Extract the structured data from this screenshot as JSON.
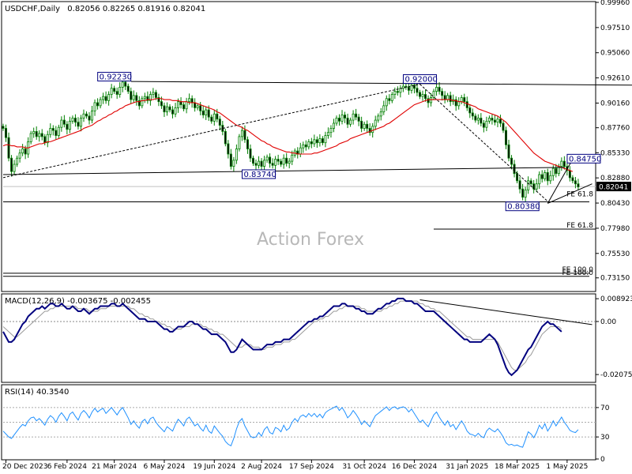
{
  "chart_data": [
    {
      "type": "candlestick",
      "panel": "price",
      "symbol_header": "USDCHF,Daily",
      "ohlc_header": "0.82056 0.82265 0.81916 0.82041",
      "watermark": "Action Forex",
      "ylim": [
        0.719,
        0.9996
      ],
      "y_tick_labels": [
        "0.99960",
        "0.97510",
        "0.95060",
        "0.92610",
        "0.90160",
        "0.87760",
        "0.85330",
        "0.82880",
        "0.80430",
        "0.77980",
        "0.75530",
        "0.73150"
      ],
      "y_tick_values": [
        0.9996,
        0.9751,
        0.9506,
        0.9261,
        0.9016,
        0.8776,
        0.8533,
        0.8288,
        0.8043,
        0.7798,
        0.7553,
        0.7315
      ],
      "current_price": {
        "label": "0.82041",
        "value": 0.82041
      },
      "price_labels": [
        {
          "text": "0.92230",
          "t": 40,
          "value": 0.9223
        },
        {
          "text": "0.92000",
          "t": 150,
          "value": 0.92
        },
        {
          "text": "0.83740",
          "t": 92,
          "value": 0.8374
        },
        {
          "text": "0.84750",
          "t": 209,
          "value": 0.8475
        },
        {
          "text": "0.80380",
          "t": 194,
          "value": 0.8038
        }
      ],
      "fib_labels": [
        {
          "text": "FE 61.8",
          "value": 0.8095
        },
        {
          "text": "FE 61.8",
          "value": 0.779
        },
        {
          "text": "FE 100.0",
          "value": 0.736
        },
        {
          "text": "FE 100.0",
          "value": 0.733
        }
      ],
      "close_series": [
        0.877,
        0.868,
        0.848,
        0.835,
        0.842,
        0.848,
        0.853,
        0.857,
        0.852,
        0.864,
        0.872,
        0.874,
        0.869,
        0.872,
        0.869,
        0.863,
        0.871,
        0.877,
        0.875,
        0.87,
        0.878,
        0.885,
        0.881,
        0.876,
        0.884,
        0.887,
        0.883,
        0.879,
        0.887,
        0.891,
        0.889,
        0.885,
        0.894,
        0.902,
        0.899,
        0.905,
        0.908,
        0.904,
        0.91,
        0.916,
        0.913,
        0.91,
        0.917,
        0.922,
        0.918,
        0.913,
        0.905,
        0.909,
        0.904,
        0.899,
        0.906,
        0.908,
        0.904,
        0.91,
        0.912,
        0.907,
        0.903,
        0.899,
        0.893,
        0.898,
        0.895,
        0.891,
        0.897,
        0.903,
        0.9,
        0.896,
        0.903,
        0.906,
        0.902,
        0.897,
        0.899,
        0.894,
        0.89,
        0.895,
        0.888,
        0.884,
        0.891,
        0.886,
        0.88,
        0.874,
        0.862,
        0.852,
        0.84,
        0.846,
        0.857,
        0.869,
        0.875,
        0.866,
        0.857,
        0.848,
        0.843,
        0.841,
        0.845,
        0.84,
        0.846,
        0.849,
        0.843,
        0.841,
        0.847,
        0.845,
        0.842,
        0.848,
        0.843,
        0.845,
        0.851,
        0.855,
        0.852,
        0.858,
        0.861,
        0.859,
        0.864,
        0.862,
        0.866,
        0.863,
        0.867,
        0.863,
        0.87,
        0.873,
        0.877,
        0.882,
        0.887,
        0.884,
        0.89,
        0.887,
        0.881,
        0.885,
        0.891,
        0.888,
        0.884,
        0.877,
        0.881,
        0.877,
        0.873,
        0.879,
        0.885,
        0.889,
        0.893,
        0.899,
        0.906,
        0.904,
        0.91,
        0.913,
        0.912,
        0.916,
        0.918,
        0.917,
        0.914,
        0.919,
        0.916,
        0.912,
        0.908,
        0.91,
        0.906,
        0.902,
        0.907,
        0.913,
        0.917,
        0.913,
        0.909,
        0.905,
        0.909,
        0.903,
        0.905,
        0.899,
        0.903,
        0.907,
        0.903,
        0.897,
        0.892,
        0.889,
        0.885,
        0.887,
        0.882,
        0.878,
        0.884,
        0.887,
        0.885,
        0.883,
        0.886,
        0.882,
        0.875,
        0.861,
        0.848,
        0.842,
        0.833,
        0.826,
        0.818,
        0.81,
        0.817,
        0.826,
        0.823,
        0.818,
        0.823,
        0.832,
        0.828,
        0.834,
        0.826,
        0.831,
        0.838,
        0.833,
        0.84,
        0.845,
        0.84,
        0.836,
        0.829,
        0.826,
        0.823,
        0.82
      ],
      "ma_series": [
        0.86,
        0.861,
        0.861,
        0.86,
        0.86,
        0.859,
        0.859,
        0.859,
        0.858,
        0.858,
        0.859,
        0.86,
        0.861,
        0.862,
        0.862,
        0.863,
        0.864,
        0.864,
        0.865,
        0.866,
        0.867,
        0.868,
        0.869,
        0.87,
        0.871,
        0.872,
        0.873,
        0.874,
        0.875,
        0.877,
        0.878,
        0.879,
        0.88,
        0.882,
        0.884,
        0.885,
        0.887,
        0.888,
        0.89,
        0.891,
        0.893,
        0.894,
        0.896,
        0.897,
        0.899,
        0.9,
        0.901,
        0.902,
        0.903,
        0.903,
        0.904,
        0.904,
        0.905,
        0.905,
        0.905,
        0.906,
        0.906,
        0.906,
        0.905,
        0.905,
        0.905,
        0.904,
        0.904,
        0.904,
        0.903,
        0.903,
        0.903,
        0.902,
        0.902,
        0.902,
        0.901,
        0.9,
        0.899,
        0.898,
        0.897,
        0.896,
        0.895,
        0.893,
        0.892,
        0.89,
        0.888,
        0.886,
        0.884,
        0.882,
        0.88,
        0.879,
        0.878,
        0.876,
        0.875,
        0.873,
        0.871,
        0.869,
        0.867,
        0.865,
        0.864,
        0.862,
        0.861,
        0.859,
        0.858,
        0.857,
        0.856,
        0.855,
        0.854,
        0.854,
        0.853,
        0.853,
        0.852,
        0.852,
        0.852,
        0.852,
        0.852,
        0.852,
        0.853,
        0.853,
        0.854,
        0.855,
        0.856,
        0.857,
        0.858,
        0.859,
        0.86,
        0.862,
        0.863,
        0.864,
        0.865,
        0.867,
        0.868,
        0.869,
        0.87,
        0.871,
        0.872,
        0.873,
        0.874,
        0.875,
        0.876,
        0.877,
        0.878,
        0.879,
        0.881,
        0.882,
        0.884,
        0.886,
        0.888,
        0.89,
        0.892,
        0.894,
        0.896,
        0.898,
        0.9,
        0.901,
        0.902,
        0.903,
        0.904,
        0.905,
        0.905,
        0.905,
        0.905,
        0.905,
        0.905,
        0.905,
        0.905,
        0.905,
        0.904,
        0.904,
        0.903,
        0.903,
        0.902,
        0.901,
        0.9,
        0.899,
        0.898,
        0.896,
        0.895,
        0.894,
        0.893,
        0.892,
        0.891,
        0.89,
        0.889,
        0.887,
        0.885,
        0.883,
        0.88,
        0.877,
        0.874,
        0.871,
        0.868,
        0.865,
        0.862,
        0.859,
        0.856,
        0.853,
        0.851,
        0.849,
        0.847,
        0.845,
        0.844,
        0.843,
        0.842,
        0.841,
        0.84,
        0.839,
        0.838,
        0.837,
        0.836,
        0.835
      ]
    },
    {
      "type": "line",
      "panel": "macd",
      "header": "MACD(12,26,9) -0.003675 -0.002455",
      "ylim": [
        -0.0235,
        0.0105
      ],
      "y_tick_labels": [
        "0.008923",
        "0.00",
        "-0.020750"
      ],
      "y_tick_values": [
        0.008923,
        0.0,
        -0.02075
      ],
      "current_value": {
        "label": "0.00",
        "value": 0.0
      },
      "macd_series": [
        -0.004,
        -0.006,
        -0.008,
        -0.008,
        -0.007,
        -0.005,
        -0.003,
        -0.001,
        0.0,
        0.002,
        0.003,
        0.004,
        0.005,
        0.005,
        0.006,
        0.005,
        0.006,
        0.007,
        0.007,
        0.006,
        0.006,
        0.007,
        0.006,
        0.005,
        0.005,
        0.006,
        0.005,
        0.004,
        0.004,
        0.005,
        0.004,
        0.003,
        0.004,
        0.005,
        0.005,
        0.006,
        0.006,
        0.006,
        0.006,
        0.007,
        0.007,
        0.006,
        0.006,
        0.007,
        0.006,
        0.005,
        0.004,
        0.003,
        0.002,
        0.001,
        0.001,
        0.001,
        0.0,
        0.0,
        0.0,
        0.0,
        -0.001,
        -0.002,
        -0.003,
        -0.003,
        -0.004,
        -0.004,
        -0.003,
        -0.002,
        -0.002,
        -0.002,
        -0.001,
        0.0,
        0.0,
        -0.001,
        -0.001,
        -0.002,
        -0.003,
        -0.003,
        -0.004,
        -0.005,
        -0.005,
        -0.005,
        -0.006,
        -0.007,
        -0.008,
        -0.01,
        -0.012,
        -0.012,
        -0.011,
        -0.009,
        -0.007,
        -0.008,
        -0.009,
        -0.01,
        -0.011,
        -0.011,
        -0.011,
        -0.011,
        -0.01,
        -0.009,
        -0.009,
        -0.009,
        -0.008,
        -0.008,
        -0.008,
        -0.007,
        -0.007,
        -0.007,
        -0.006,
        -0.005,
        -0.004,
        -0.003,
        -0.002,
        -0.001,
        0.0,
        0.0,
        0.001,
        0.001,
        0.002,
        0.002,
        0.003,
        0.004,
        0.005,
        0.006,
        0.006,
        0.006,
        0.007,
        0.007,
        0.006,
        0.006,
        0.006,
        0.005,
        0.005,
        0.004,
        0.004,
        0.003,
        0.003,
        0.003,
        0.004,
        0.005,
        0.005,
        0.006,
        0.007,
        0.007,
        0.008,
        0.008,
        0.009,
        0.009,
        0.009,
        0.008,
        0.008,
        0.008,
        0.007,
        0.007,
        0.006,
        0.005,
        0.004,
        0.004,
        0.004,
        0.004,
        0.003,
        0.002,
        0.001,
        0.0,
        -0.001,
        -0.002,
        -0.003,
        -0.004,
        -0.005,
        -0.006,
        -0.007,
        -0.007,
        -0.008,
        -0.008,
        -0.008,
        -0.008,
        -0.008,
        -0.007,
        -0.006,
        -0.005,
        -0.006,
        -0.007,
        -0.009,
        -0.012,
        -0.015,
        -0.018,
        -0.02,
        -0.021,
        -0.02,
        -0.019,
        -0.017,
        -0.015,
        -0.013,
        -0.011,
        -0.01,
        -0.008,
        -0.006,
        -0.004,
        -0.002,
        -0.001,
        0.0,
        -0.001,
        -0.001,
        -0.002,
        -0.003,
        -0.004
      ],
      "signal_series": [
        -0.002,
        -0.003,
        -0.004,
        -0.005,
        -0.006,
        -0.006,
        -0.005,
        -0.004,
        -0.003,
        -0.002,
        -0.001,
        0.0,
        0.001,
        0.002,
        0.003,
        0.004,
        0.004,
        0.005,
        0.005,
        0.006,
        0.006,
        0.006,
        0.006,
        0.006,
        0.006,
        0.006,
        0.006,
        0.005,
        0.005,
        0.005,
        0.005,
        0.004,
        0.004,
        0.004,
        0.004,
        0.005,
        0.005,
        0.005,
        0.006,
        0.006,
        0.006,
        0.006,
        0.006,
        0.006,
        0.006,
        0.006,
        0.005,
        0.005,
        0.004,
        0.003,
        0.003,
        0.002,
        0.002,
        0.001,
        0.001,
        0.0,
        0.0,
        -0.001,
        -0.001,
        -0.002,
        -0.002,
        -0.003,
        -0.003,
        -0.003,
        -0.003,
        -0.002,
        -0.002,
        -0.002,
        -0.001,
        -0.001,
        -0.001,
        -0.001,
        -0.002,
        -0.002,
        -0.003,
        -0.003,
        -0.004,
        -0.004,
        -0.005,
        -0.005,
        -0.006,
        -0.007,
        -0.008,
        -0.009,
        -0.01,
        -0.01,
        -0.01,
        -0.009,
        -0.009,
        -0.009,
        -0.01,
        -0.01,
        -0.01,
        -0.011,
        -0.011,
        -0.01,
        -0.01,
        -0.01,
        -0.009,
        -0.009,
        -0.009,
        -0.008,
        -0.008,
        -0.008,
        -0.007,
        -0.007,
        -0.006,
        -0.005,
        -0.004,
        -0.003,
        -0.002,
        -0.001,
        0.0,
        0.0,
        0.001,
        0.001,
        0.002,
        0.002,
        0.003,
        0.004,
        0.004,
        0.005,
        0.005,
        0.006,
        0.006,
        0.006,
        0.006,
        0.006,
        0.006,
        0.005,
        0.005,
        0.004,
        0.004,
        0.004,
        0.004,
        0.004,
        0.004,
        0.005,
        0.005,
        0.006,
        0.006,
        0.007,
        0.007,
        0.008,
        0.008,
        0.008,
        0.008,
        0.008,
        0.008,
        0.008,
        0.007,
        0.007,
        0.006,
        0.006,
        0.005,
        0.005,
        0.004,
        0.004,
        0.003,
        0.002,
        0.001,
        0.0,
        -0.001,
        -0.002,
        -0.003,
        -0.004,
        -0.005,
        -0.006,
        -0.006,
        -0.007,
        -0.007,
        -0.007,
        -0.007,
        -0.007,
        -0.007,
        -0.007,
        -0.007,
        -0.007,
        -0.008,
        -0.01,
        -0.012,
        -0.014,
        -0.016,
        -0.018,
        -0.019,
        -0.019,
        -0.018,
        -0.017,
        -0.016,
        -0.014,
        -0.013,
        -0.011,
        -0.009,
        -0.007,
        -0.005,
        -0.004,
        -0.003,
        -0.002,
        -0.002,
        -0.002,
        -0.002,
        -0.003
      ]
    },
    {
      "type": "line",
      "panel": "rsi",
      "header": "RSI(14) 40.3540",
      "ylim": [
        0,
        100
      ],
      "y_tick_labels": [
        "70",
        "30",
        "0"
      ],
      "y_tick_values": [
        70,
        30,
        0
      ],
      "levels": [
        70,
        50,
        30
      ],
      "rsi_series": [
        38,
        34,
        30,
        28,
        33,
        38,
        43,
        47,
        45,
        52,
        56,
        57,
        52,
        55,
        51,
        46,
        54,
        59,
        56,
        50,
        58,
        63,
        58,
        52,
        61,
        64,
        58,
        53,
        62,
        66,
        62,
        56,
        64,
        69,
        64,
        67,
        69,
        62,
        66,
        70,
        65,
        60,
        66,
        70,
        63,
        56,
        47,
        52,
        46,
        42,
        51,
        54,
        48,
        55,
        57,
        50,
        45,
        41,
        37,
        44,
        41,
        38,
        47,
        54,
        50,
        45,
        54,
        57,
        51,
        45,
        48,
        42,
        38,
        46,
        38,
        35,
        45,
        40,
        35,
        31,
        24,
        20,
        18,
        28,
        41,
        51,
        55,
        45,
        38,
        31,
        29,
        30,
        36,
        31,
        40,
        44,
        36,
        34,
        43,
        41,
        37,
        46,
        39,
        42,
        50,
        55,
        51,
        58,
        60,
        57,
        62,
        58,
        62,
        57,
        61,
        56,
        63,
        66,
        68,
        70,
        72,
        66,
        70,
        64,
        56,
        60,
        66,
        61,
        55,
        47,
        52,
        48,
        44,
        52,
        59,
        62,
        65,
        68,
        71,
        66,
        70,
        71,
        68,
        70,
        71,
        69,
        64,
        68,
        62,
        56,
        50,
        53,
        48,
        44,
        52,
        60,
        64,
        57,
        51,
        46,
        52,
        44,
        47,
        40,
        46,
        52,
        46,
        38,
        34,
        33,
        31,
        35,
        31,
        29,
        38,
        42,
        39,
        37,
        41,
        36,
        30,
        22,
        19,
        20,
        18,
        19,
        17,
        16,
        26,
        37,
        34,
        29,
        36,
        46,
        41,
        48,
        38,
        44,
        52,
        45,
        51,
        57,
        50,
        45,
        39,
        37,
        36,
        40
      ]
    }
  ],
  "x_axis": {
    "tick_labels": [
      "20 Dec 2023",
      "6 Feb 2024",
      "21 Mar 2024",
      "6 May 2024",
      "19 Jun 2024",
      "2 Aug 2024",
      "17 Sep 2024",
      "31 Oct 2024",
      "16 Dec 2024",
      "31 Jan 2025",
      "18 Mar 2025",
      "1 May 2025"
    ],
    "tick_index": [
      1,
      23,
      40,
      58,
      76,
      93,
      111,
      130,
      148,
      167,
      185,
      203
    ],
    "bar_count": 212
  },
  "colors": {
    "bull": "#008000",
    "bear": "#008000",
    "ma": "#e00000",
    "macd": "#00007f",
    "signal": "#9a9a9a",
    "rsi": "#1e90ff",
    "trend": "#000000",
    "panel_bg": "#ffffff",
    "label_border": "#000080"
  }
}
